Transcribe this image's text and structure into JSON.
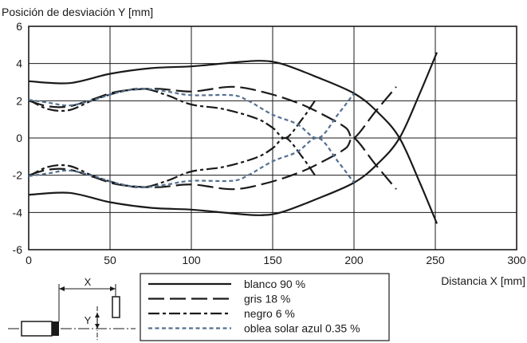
{
  "chart_data": {
    "type": "line",
    "ylabel": "Posición de desviación Y [mm]",
    "xlabel": "Distancia X [mm]",
    "xlim": [
      0,
      300
    ],
    "ylim": [
      -6,
      6
    ],
    "x_ticks": [
      0,
      50,
      100,
      150,
      200,
      250,
      300
    ],
    "y_ticks": [
      6,
      4,
      2,
      0,
      -2,
      -4,
      -6
    ],
    "grid": true,
    "legend_position": "bottom-center, below plot",
    "series": [
      {
        "name": "blanco 90 %",
        "style": "solid",
        "color": "#1a1a1a",
        "curves": [
          [
            [
              0,
              3.05
            ],
            [
              25,
              2.95
            ],
            [
              50,
              3.45
            ],
            [
              75,
              3.75
            ],
            [
              100,
              3.85
            ],
            [
              125,
              4.05
            ],
            [
              142,
              4.15
            ],
            [
              155,
              4.0
            ],
            [
              175,
              3.35
            ],
            [
              200,
              2.4
            ],
            [
              215,
              1.35
            ],
            [
              228,
              0.0
            ],
            [
              240,
              -2.3
            ],
            [
              251,
              -4.6
            ]
          ],
          [
            [
              0,
              -3.05
            ],
            [
              25,
              -2.95
            ],
            [
              50,
              -3.45
            ],
            [
              75,
              -3.75
            ],
            [
              100,
              -3.85
            ],
            [
              125,
              -4.05
            ],
            [
              142,
              -4.15
            ],
            [
              155,
              -4.0
            ],
            [
              175,
              -3.35
            ],
            [
              200,
              -2.4
            ],
            [
              215,
              -1.35
            ],
            [
              228,
              0.0
            ],
            [
              240,
              2.3
            ],
            [
              251,
              4.6
            ]
          ]
        ]
      },
      {
        "name": "gris 18 %",
        "style": "long-dash",
        "color": "#1a1a1a",
        "curves": [
          [
            [
              0,
              2.0
            ],
            [
              12,
              1.7
            ],
            [
              25,
              1.7
            ],
            [
              40,
              2.1
            ],
            [
              55,
              2.5
            ],
            [
              78,
              2.65
            ],
            [
              100,
              2.5
            ],
            [
              125,
              2.75
            ],
            [
              145,
              2.45
            ],
            [
              165,
              1.9
            ],
            [
              180,
              1.3
            ],
            [
              195,
              0.55
            ],
            [
              200,
              0.0
            ],
            [
              213,
              1.4
            ],
            [
              226,
              2.75
            ]
          ],
          [
            [
              0,
              -2.0
            ],
            [
              12,
              -1.7
            ],
            [
              25,
              -1.7
            ],
            [
              40,
              -2.1
            ],
            [
              55,
              -2.5
            ],
            [
              78,
              -2.65
            ],
            [
              100,
              -2.5
            ],
            [
              125,
              -2.75
            ],
            [
              145,
              -2.45
            ],
            [
              165,
              -1.9
            ],
            [
              180,
              -1.3
            ],
            [
              195,
              -0.55
            ],
            [
              200,
              0.0
            ],
            [
              213,
              -1.4
            ],
            [
              226,
              -2.75
            ]
          ]
        ]
      },
      {
        "name": "negro 6 %",
        "style": "dash-dot",
        "color": "#1a1a1a",
        "curves": [
          [
            [
              0,
              2.05
            ],
            [
              12,
              1.55
            ],
            [
              25,
              1.5
            ],
            [
              40,
              2.05
            ],
            [
              55,
              2.45
            ],
            [
              70,
              2.65
            ],
            [
              85,
              2.3
            ],
            [
              100,
              1.8
            ],
            [
              120,
              1.55
            ],
            [
              140,
              1.05
            ],
            [
              150,
              0.55
            ],
            [
              158,
              0.0
            ],
            [
              168,
              1.0
            ],
            [
              176,
              2.0
            ]
          ],
          [
            [
              0,
              -2.05
            ],
            [
              12,
              -1.55
            ],
            [
              25,
              -1.5
            ],
            [
              40,
              -2.05
            ],
            [
              55,
              -2.45
            ],
            [
              70,
              -2.65
            ],
            [
              85,
              -2.3
            ],
            [
              100,
              -1.8
            ],
            [
              120,
              -1.55
            ],
            [
              140,
              -1.05
            ],
            [
              150,
              -0.55
            ],
            [
              158,
              0.0
            ],
            [
              168,
              -1.0
            ],
            [
              176,
              -2.0
            ]
          ]
        ]
      },
      {
        "name": "oblea solar azul 0.35 %",
        "style": "short-dash",
        "color": "#55708f",
        "curves": [
          [
            [
              0,
              2.05
            ],
            [
              12,
              1.9
            ],
            [
              25,
              1.75
            ],
            [
              40,
              2.05
            ],
            [
              55,
              2.45
            ],
            [
              70,
              2.65
            ],
            [
              85,
              2.5
            ],
            [
              100,
              2.3
            ],
            [
              125,
              2.3
            ],
            [
              135,
              2.0
            ],
            [
              150,
              1.25
            ],
            [
              165,
              0.75
            ],
            [
              178,
              0.0
            ],
            [
              190,
              1.25
            ],
            [
              200,
              2.4
            ]
          ],
          [
            [
              0,
              -2.05
            ],
            [
              12,
              -1.9
            ],
            [
              25,
              -1.75
            ],
            [
              40,
              -2.05
            ],
            [
              55,
              -2.45
            ],
            [
              70,
              -2.65
            ],
            [
              85,
              -2.5
            ],
            [
              100,
              -2.3
            ],
            [
              125,
              -2.3
            ],
            [
              135,
              -2.0
            ],
            [
              150,
              -1.25
            ],
            [
              165,
              -0.75
            ],
            [
              178,
              0.0
            ],
            [
              190,
              -1.25
            ],
            [
              200,
              -2.4
            ]
          ]
        ]
      }
    ]
  },
  "inset": {
    "x_label": "X",
    "y_label": "Y"
  }
}
